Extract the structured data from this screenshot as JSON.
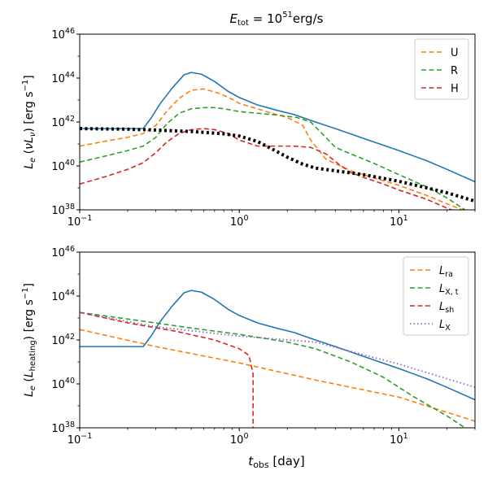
{
  "chart_data": [
    {
      "type": "line",
      "title": "E_tot = 10^51 erg/s",
      "title_parts": {
        "lhs": "E",
        "lhs_sub": "tot",
        "eq": " = 10",
        "exp": "51",
        "unit": "erg/s"
      },
      "ylabel": "L_e (νL_ν) [erg s^-1]",
      "ylabel_parts": {
        "a": "L",
        "a_sub": "e",
        "b": " (",
        "c": "ν",
        "d": "L",
        "d_sub": "ν",
        "e": ") [erg s",
        "f_sup": "−1",
        "g": "]"
      },
      "xscale": "log",
      "yscale": "log",
      "xlim": [
        0.1,
        30
      ],
      "ylim": [
        1e+38,
        1e+46
      ],
      "xticks": [
        {
          "v": 0.1,
          "base": "10",
          "exp": "−1"
        },
        {
          "v": 1,
          "base": "10",
          "exp": "0"
        },
        {
          "v": 10,
          "base": "10",
          "exp": "1"
        }
      ],
      "yticks": [
        {
          "v": 1e+38,
          "base": "10",
          "exp": "38"
        },
        {
          "v": 1e+40,
          "base": "10",
          "exp": "40"
        },
        {
          "v": 1e+42,
          "base": "10",
          "exp": "42"
        },
        {
          "v": 1e+44,
          "base": "10",
          "exp": "44"
        },
        {
          "v": 1e+46,
          "base": "10",
          "exp": "46"
        }
      ],
      "legend_position": "top-right",
      "series": [
        {
          "name": "total",
          "color": "#1f77b4",
          "style": "solid",
          "legend": false,
          "x": [
            0.1,
            0.15,
            0.2,
            0.25,
            0.28,
            0.32,
            0.38,
            0.45,
            0.5,
            0.58,
            0.7,
            0.85,
            1.0,
            1.3,
            1.7,
            2.2,
            3.0,
            4.0,
            6.0,
            10,
            15,
            20,
            30
          ],
          "y": [
            5e+41,
            5e+41,
            5e+41,
            5e+41,
            1.5e+42,
            7e+42,
            3.5e+43,
            1.4e+44,
            1.8e+44,
            1.5e+44,
            7e+43,
            2.5e+43,
            1.3e+43,
            6e+42,
            3.5e+42,
            2.2e+42,
            1e+42,
            5e+41,
            1.8e+41,
            5e+40,
            1.7e+40,
            7e+39,
            1.9e+39
          ]
        },
        {
          "name": "U",
          "color": "#ff7f0e",
          "style": "dashed",
          "legend": true,
          "x": [
            0.1,
            0.15,
            0.2,
            0.25,
            0.3,
            0.35,
            0.42,
            0.5,
            0.6,
            0.75,
            0.9,
            1.0,
            1.3,
            1.6,
            2.0,
            2.5,
            2.8,
            3.5,
            5,
            10,
            15,
            20,
            30
          ],
          "y": [
            8e+40,
            1.4e+41,
            2e+41,
            3e+41,
            7e+41,
            3e+42,
            1.2e+43,
            2.8e+43,
            3.2e+43,
            2e+43,
            1.1e+43,
            7e+42,
            4e+42,
            2.5e+42,
            1.6e+42,
            7e+41,
            1.5e+41,
            2e+40,
            6e+39,
            1.3e+39,
            4.5e+38,
            1.9e+38,
            6e+37
          ]
        },
        {
          "name": "R",
          "color": "#2ca02c",
          "style": "dashed",
          "legend": true,
          "x": [
            0.1,
            0.15,
            0.2,
            0.25,
            0.3,
            0.35,
            0.42,
            0.5,
            0.6,
            0.7,
            0.8,
            1.0,
            1.3,
            1.8,
            2.3,
            2.8,
            3.3,
            4.0,
            5,
            7,
            10,
            15,
            20,
            30
          ],
          "y": [
            1.5e+40,
            3e+40,
            5e+40,
            8e+40,
            2e+41,
            8e+41,
            2.5e+42,
            4e+42,
            4.5e+42,
            4.5e+42,
            4e+42,
            3e+42,
            2.5e+42,
            2e+42,
            1.6e+42,
            1e+42,
            3e+41,
            7e+40,
            3.5e+40,
            1.3e+40,
            4e+39,
            1.1e+39,
            3.5e+38,
            5e+37
          ]
        },
        {
          "name": "H",
          "color": "#d62728",
          "style": "dashed",
          "legend": true,
          "x": [
            0.1,
            0.15,
            0.2,
            0.25,
            0.3,
            0.35,
            0.42,
            0.5,
            0.6,
            0.7,
            0.85,
            1.0,
            1.3,
            1.8,
            2.2,
            2.8,
            3.5,
            4.2,
            5,
            6,
            8,
            10,
            15,
            20,
            30
          ],
          "y": [
            1.5e+39,
            3.5e+39,
            7e+39,
            1.4e+40,
            4e+40,
            1.2e+41,
            3e+41,
            4.5e+41,
            5e+41,
            4.5e+41,
            3e+41,
            1.5e+41,
            8e+40,
            8e+40,
            8e+40,
            7e+40,
            3.5e+40,
            1.2e+40,
            5e+39,
            3e+39,
            1.5e+39,
            8e+38,
            3e+38,
            1.2e+38,
            4e+37
          ]
        },
        {
          "name": "black dotted",
          "color": "#000000",
          "style": "dotted",
          "legend": false,
          "x": [
            0.1,
            0.2,
            0.3,
            0.5,
            0.8,
            1.0,
            1.3,
            1.6,
            2.0,
            2.5,
            3.0,
            4.0,
            6.0,
            10,
            15,
            20,
            30
          ],
          "y": [
            5e+41,
            4.7e+41,
            4.3e+41,
            3.7e+41,
            2.9e+41,
            2.3e+41,
            1.3e+41,
            6e+40,
            2.5e+40,
            1.2e+40,
            8e+39,
            6e+39,
            4e+39,
            2e+39,
            1e+39,
            6e+38,
            2.5e+38
          ]
        }
      ]
    },
    {
      "type": "line",
      "title": "",
      "xlabel": "t_obs [day]",
      "xlabel_parts": {
        "a": "t",
        "a_sub": "obs",
        "b": " [day]"
      },
      "ylabel": "L_e (L_heating) [erg s^-1]",
      "ylabel_parts": {
        "a": "L",
        "a_sub": "e",
        "b": " (",
        "c": "L",
        "c_sub": "heating",
        "e": ") [erg s",
        "f_sup": "−1",
        "g": "]"
      },
      "xscale": "log",
      "yscale": "log",
      "xlim": [
        0.1,
        30
      ],
      "ylim": [
        1e+38,
        1e+46
      ],
      "xticks": [
        {
          "v": 0.1,
          "base": "10",
          "exp": "−1"
        },
        {
          "v": 1,
          "base": "10",
          "exp": "0"
        },
        {
          "v": 10,
          "base": "10",
          "exp": "1"
        }
      ],
      "yticks": [
        {
          "v": 1e+38,
          "base": "10",
          "exp": "38"
        },
        {
          "v": 1e+40,
          "base": "10",
          "exp": "40"
        },
        {
          "v": 1e+42,
          "base": "10",
          "exp": "42"
        },
        {
          "v": 1e+44,
          "base": "10",
          "exp": "44"
        },
        {
          "v": 1e+46,
          "base": "10",
          "exp": "46"
        }
      ],
      "legend_position": "top-right",
      "series": [
        {
          "name": "total",
          "color": "#1f77b4",
          "style": "solid",
          "legend": false,
          "x": [
            0.1,
            0.15,
            0.2,
            0.25,
            0.28,
            0.32,
            0.38,
            0.45,
            0.5,
            0.58,
            0.7,
            0.85,
            1.0,
            1.3,
            1.7,
            2.2,
            3.0,
            4.0,
            6.0,
            10,
            15,
            20,
            30
          ],
          "y": [
            5e+41,
            5e+41,
            5e+41,
            5e+41,
            1.5e+42,
            7e+42,
            3.5e+43,
            1.4e+44,
            1.8e+44,
            1.5e+44,
            7e+43,
            2.5e+43,
            1.3e+43,
            6e+42,
            3.5e+42,
            2.2e+42,
            1e+42,
            5e+41,
            1.8e+41,
            5e+40,
            1.7e+40,
            7e+39,
            1.9e+39
          ]
        },
        {
          "name": "L_ra",
          "label_base": "L",
          "label_sub": "ra",
          "color": "#ff7f0e",
          "style": "dashed",
          "legend": true,
          "x": [
            0.1,
            0.3,
            1,
            3,
            10,
            30
          ],
          "y": [
            3e+42,
            5e+41,
            9e+40,
            1.5e+40,
            2.5e+39,
            2e+38
          ]
        },
        {
          "name": "L_X,t",
          "label_base": "L",
          "label_sub": "X, t",
          "color": "#2ca02c",
          "style": "dashed",
          "legend": true,
          "x": [
            0.1,
            0.2,
            0.5,
            1,
            2,
            3,
            5,
            8,
            12,
            20,
            30
          ],
          "y": [
            1.8e+43,
            9e+42,
            3.5e+42,
            1.8e+42,
            8e+41,
            4e+41,
            1e+41,
            2e+40,
            3e+39,
            3.5e+38,
            5e+37
          ]
        },
        {
          "name": "L_sh",
          "label_base": "L",
          "label_sub": "sh",
          "color": "#d62728",
          "style": "dashed",
          "legend": true,
          "x": [
            0.1,
            0.2,
            0.4,
            0.7,
            1.0,
            1.15,
            1.22,
            1.22
          ],
          "y": [
            1.8e+43,
            6e+42,
            2.5e+42,
            1e+42,
            4e+41,
            2e+41,
            3e+40,
            1e+38
          ]
        },
        {
          "name": "L_X",
          "label_base": "L",
          "label_sub": "X",
          "color": "#9467bd",
          "style": "dotted",
          "legend": true,
          "x": [
            0.1,
            0.3,
            1,
            3,
            10,
            30
          ],
          "y": [
            1.8e+43,
            4e+42,
            1.5e+42,
            8e+41,
            8e+40,
            7e+39
          ]
        }
      ]
    }
  ]
}
